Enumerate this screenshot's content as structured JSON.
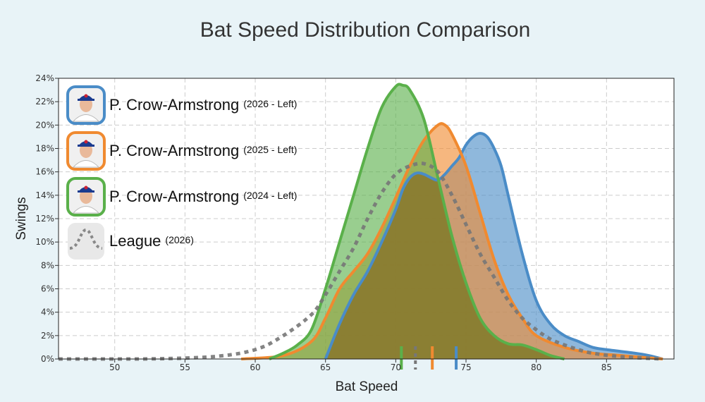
{
  "chart_data": {
    "type": "area",
    "title": "Bat Speed Distribution Comparison",
    "xlabel": "Bat Speed",
    "ylabel": "Swings",
    "xlim": [
      46,
      89.8
    ],
    "ylim": [
      0,
      24
    ],
    "x_ticks": [
      "50",
      "55",
      "60",
      "65",
      "70",
      "75",
      "80",
      "85"
    ],
    "y_ticks": [
      "0%",
      "2%",
      "4%",
      "6%",
      "8%",
      "10%",
      "12%",
      "14%",
      "16%",
      "18%",
      "20%",
      "22%",
      "24%"
    ],
    "grid": true,
    "legend_position": "top-left",
    "series": [
      {
        "name": "P. Crow-Armstrong",
        "season": "(2026 - Left)",
        "color": "#4a8cc7",
        "mean": 74.3,
        "points": [
          [
            65,
            0
          ],
          [
            66,
            3
          ],
          [
            67,
            5.5
          ],
          [
            68,
            7.5
          ],
          [
            69,
            10
          ],
          [
            70,
            12.8
          ],
          [
            70.5,
            14.5
          ],
          [
            71,
            15.5
          ],
          [
            71.5,
            15.9
          ],
          [
            72,
            15.8
          ],
          [
            72.5,
            15.5
          ],
          [
            73,
            15.3
          ],
          [
            73.5,
            15.8
          ],
          [
            74,
            16.5
          ],
          [
            74.5,
            17.2
          ],
          [
            75,
            18.3
          ],
          [
            75.5,
            19
          ],
          [
            76,
            19.3
          ],
          [
            76.5,
            19
          ],
          [
            77,
            18
          ],
          [
            77.5,
            16.5
          ],
          [
            78,
            14
          ],
          [
            79,
            9
          ],
          [
            80,
            5
          ],
          [
            81,
            3
          ],
          [
            82,
            2
          ],
          [
            83,
            1.5
          ],
          [
            84,
            1
          ],
          [
            85,
            0.8
          ],
          [
            87,
            0.5
          ],
          [
            88,
            0.3
          ],
          [
            89,
            0
          ]
        ]
      },
      {
        "name": "P. Crow-Armstrong",
        "season": "(2025 - Left)",
        "color": "#f08a30",
        "mean": 72.6,
        "points": [
          [
            59,
            0
          ],
          [
            62,
            0.3
          ],
          [
            64,
            1.5
          ],
          [
            65,
            3.5
          ],
          [
            66,
            6
          ],
          [
            67,
            7.5
          ],
          [
            68,
            9
          ],
          [
            69,
            11.2
          ],
          [
            70,
            13.8
          ],
          [
            71,
            16.5
          ],
          [
            72,
            18.7
          ],
          [
            73,
            20
          ],
          [
            73.5,
            20
          ],
          [
            74,
            19.2
          ],
          [
            75,
            16.5
          ],
          [
            76,
            12.5
          ],
          [
            77,
            8.5
          ],
          [
            78,
            5.5
          ],
          [
            79,
            3.5
          ],
          [
            80,
            2
          ],
          [
            82,
            1
          ],
          [
            84,
            0.5
          ],
          [
            86,
            0.3
          ],
          [
            89,
            0
          ]
        ]
      },
      {
        "name": "P. Crow-Armstrong",
        "season": "(2024 - Left)",
        "color": "#5ab04a",
        "mean": 70.4,
        "points": [
          [
            61,
            0
          ],
          [
            62,
            0.5
          ],
          [
            63,
            1.2
          ],
          [
            64,
            2.5
          ],
          [
            65,
            6
          ],
          [
            66,
            10
          ],
          [
            67,
            14
          ],
          [
            68,
            18
          ],
          [
            69,
            21.5
          ],
          [
            70,
            23.3
          ],
          [
            70.5,
            23.4
          ],
          [
            71,
            23
          ],
          [
            72,
            20.5
          ],
          [
            73,
            15.5
          ],
          [
            74,
            10.5
          ],
          [
            75,
            6.5
          ],
          [
            76,
            3.5
          ],
          [
            77,
            2
          ],
          [
            78,
            1.3
          ],
          [
            79,
            1.2
          ],
          [
            80,
            0.8
          ],
          [
            81,
            0.3
          ],
          [
            82,
            0
          ]
        ]
      },
      {
        "name": "League",
        "season": "(2026)",
        "color": "#777777",
        "mean": 71.4,
        "points": [
          [
            46,
            0
          ],
          [
            52,
            0
          ],
          [
            57,
            0.2
          ],
          [
            60,
            0.8
          ],
          [
            62,
            2
          ],
          [
            64,
            3.8
          ],
          [
            65,
            5.5
          ],
          [
            66,
            7.5
          ],
          [
            67,
            9.5
          ],
          [
            68,
            12
          ],
          [
            69,
            14.2
          ],
          [
            70,
            15.8
          ],
          [
            71,
            16.5
          ],
          [
            72,
            16.7
          ],
          [
            73,
            16
          ],
          [
            74,
            14
          ],
          [
            75,
            11.5
          ],
          [
            76,
            9
          ],
          [
            77,
            7
          ],
          [
            78,
            5
          ],
          [
            79,
            3.5
          ],
          [
            80,
            2.5
          ],
          [
            81,
            1.7
          ],
          [
            82,
            1.2
          ],
          [
            83,
            0.8
          ],
          [
            84,
            0.5
          ],
          [
            86,
            0.2
          ],
          [
            89,
            0
          ]
        ]
      }
    ]
  },
  "colors": {
    "background": "#e8f3f7",
    "plot_background": "#ffffff",
    "grid": "#cccccc",
    "overlap_fill": "#8c7a2f"
  },
  "icons": {
    "player": "player-headshot-icon",
    "league": "league-dotted-curve-icon"
  }
}
